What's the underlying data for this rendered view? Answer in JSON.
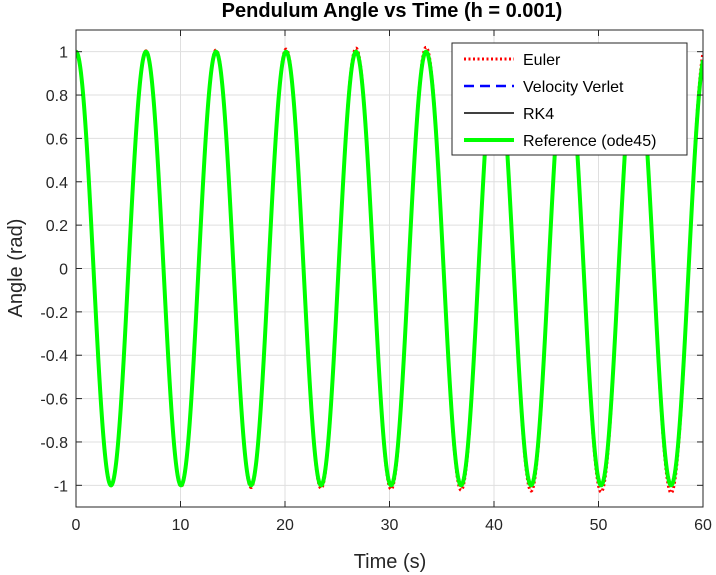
{
  "chart_data": {
    "type": "line",
    "title": "Pendulum Angle vs Time (h = 0.001)",
    "xlabel": "Time (s)",
    "ylabel": "Angle (rad)",
    "xlim": [
      0,
      60
    ],
    "ylim": [
      -1.1,
      1.1
    ],
    "xticks": [
      "0",
      "10",
      "20",
      "30",
      "40",
      "50",
      "60"
    ],
    "yticks": [
      "-1",
      "-0.8",
      "-0.6",
      "-0.4",
      "-0.2",
      "0",
      "0.2",
      "0.4",
      "0.6",
      "0.8",
      "1"
    ],
    "grid": true,
    "legend_position": "top-right",
    "period": 6.7,
    "euler_growth_rate": 0.0006,
    "series": [
      {
        "name": "Euler",
        "color": "#ff0000",
        "style": "dotted",
        "amplitude_start": 1.0,
        "amplitude_end": 1.035
      },
      {
        "name": "Velocity Verlet",
        "color": "#0000ff",
        "style": "dashed",
        "amplitude_start": 1.0,
        "amplitude_end": 1.0
      },
      {
        "name": "RK4",
        "color": "#000000",
        "style": "solid",
        "amplitude_start": 1.0,
        "amplitude_end": 1.0
      },
      {
        "name": "Reference (ode45)",
        "color": "#00ff00",
        "style": "solid-thick",
        "amplitude_start": 1.0,
        "amplitude_end": 1.0
      }
    ]
  }
}
